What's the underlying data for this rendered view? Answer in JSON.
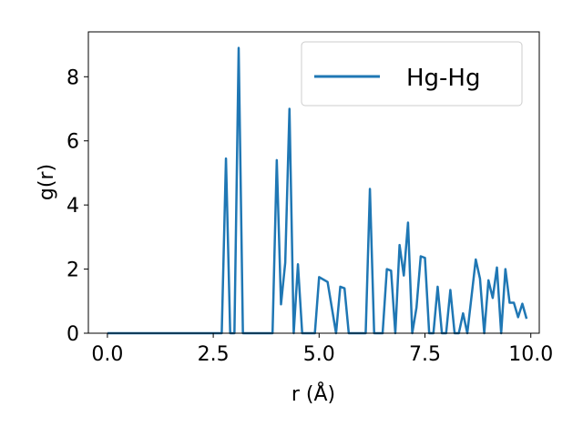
{
  "chart_data": {
    "type": "line",
    "xlabel": "r (Å)",
    "ylabel": "g(r)",
    "xlim": [
      -0.45,
      10.2
    ],
    "ylim": [
      0,
      9.4
    ],
    "xticks": [
      0.0,
      2.5,
      5.0,
      7.5,
      10.0
    ],
    "xtick_labels": [
      "0.0",
      "2.5",
      "5.0",
      "7.5",
      "10.0"
    ],
    "yticks": [
      0,
      2,
      4,
      6,
      8
    ],
    "ytick_labels": [
      "0",
      "2",
      "4",
      "6",
      "8"
    ],
    "grid": false,
    "legend_position": "top-right",
    "series": [
      {
        "name": "Hg-Hg",
        "color": "#1f77b4",
        "points": [
          [
            0.0,
            0.0
          ],
          [
            2.7,
            0.0
          ],
          [
            2.8,
            5.45
          ],
          [
            2.9,
            0.0
          ],
          [
            3.0,
            0.0
          ],
          [
            3.1,
            8.9
          ],
          [
            3.2,
            0.0
          ],
          [
            3.9,
            0.0
          ],
          [
            4.0,
            5.4
          ],
          [
            4.1,
            0.9
          ],
          [
            4.2,
            2.2
          ],
          [
            4.3,
            7.0
          ],
          [
            4.4,
            0.0
          ],
          [
            4.5,
            2.15
          ],
          [
            4.6,
            0.0
          ],
          [
            4.9,
            0.0
          ],
          [
            5.0,
            1.75
          ],
          [
            5.2,
            1.6
          ],
          [
            5.4,
            0.0
          ],
          [
            5.5,
            1.45
          ],
          [
            5.6,
            1.4
          ],
          [
            5.7,
            0.0
          ],
          [
            6.1,
            0.0
          ],
          [
            6.2,
            4.5
          ],
          [
            6.3,
            0.0
          ],
          [
            6.5,
            0.0
          ],
          [
            6.6,
            2.0
          ],
          [
            6.7,
            1.95
          ],
          [
            6.8,
            0.0
          ],
          [
            6.9,
            2.75
          ],
          [
            7.0,
            1.8
          ],
          [
            7.1,
            3.45
          ],
          [
            7.2,
            0.0
          ],
          [
            7.3,
            0.8
          ],
          [
            7.4,
            2.4
          ],
          [
            7.5,
            2.35
          ],
          [
            7.6,
            0.0
          ],
          [
            7.7,
            0.0
          ],
          [
            7.8,
            1.45
          ],
          [
            7.9,
            0.0
          ],
          [
            8.0,
            0.0
          ],
          [
            8.1,
            1.35
          ],
          [
            8.2,
            0.0
          ],
          [
            8.3,
            0.0
          ],
          [
            8.4,
            0.62
          ],
          [
            8.5,
            0.0
          ],
          [
            8.7,
            2.3
          ],
          [
            8.8,
            1.7
          ],
          [
            8.9,
            0.0
          ],
          [
            9.0,
            1.65
          ],
          [
            9.1,
            1.1
          ],
          [
            9.2,
            2.05
          ],
          [
            9.3,
            0.0
          ],
          [
            9.4,
            2.0
          ],
          [
            9.5,
            0.95
          ],
          [
            9.6,
            0.95
          ],
          [
            9.7,
            0.5
          ],
          [
            9.8,
            0.92
          ],
          [
            9.9,
            0.45
          ]
        ]
      }
    ]
  }
}
